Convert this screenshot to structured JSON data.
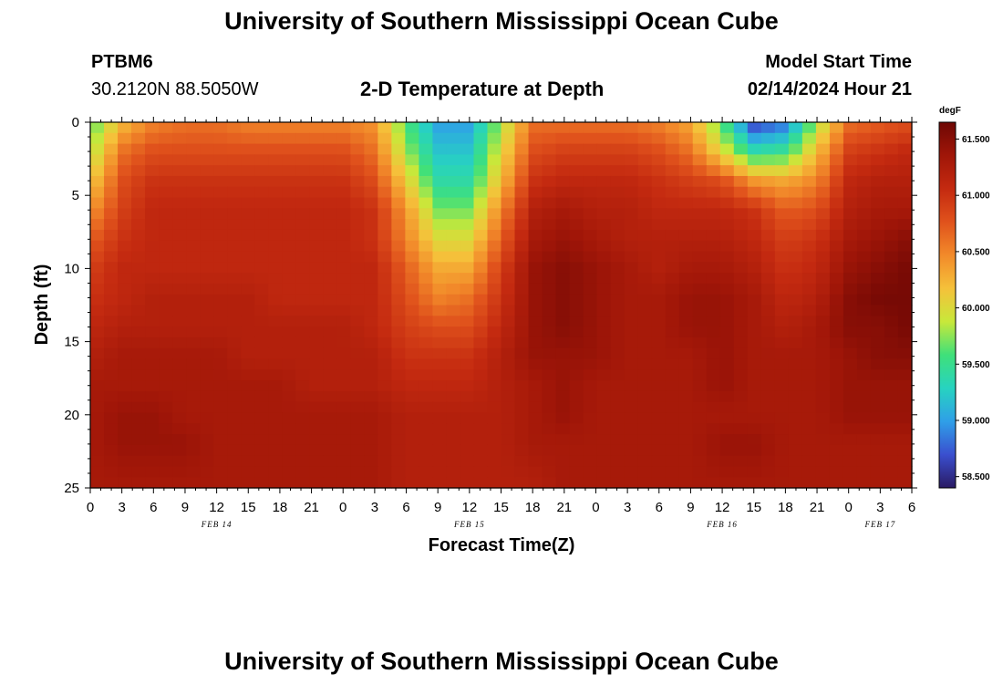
{
  "header": {
    "title": "University of Southern Mississippi Ocean Cube",
    "station": "PTBM6",
    "coords": "30.2120N  88.5050W",
    "plot_title": "2-D Temperature at Depth",
    "model_label": "Model Start Time",
    "model_time": "02/14/2024 Hour 21"
  },
  "footer": {
    "title": "University of Southern Mississippi Ocean Cube"
  },
  "chart_data": {
    "type": "heatmap",
    "title": "2-D Temperature at Depth",
    "xlabel": "Forecast Time(Z)",
    "ylabel": "Depth (ft)",
    "colorbar_label": "degF",
    "x_tick_labels": [
      "0",
      "3",
      "6",
      "9",
      "12",
      "15",
      "18",
      "21",
      "0",
      "3",
      "6",
      "9",
      "12",
      "15",
      "18",
      "21",
      "0",
      "3",
      "6",
      "9",
      "12",
      "15",
      "18",
      "21",
      "0",
      "3",
      "6"
    ],
    "date_labels": [
      {
        "label": "FEB 14",
        "hour_index": 12
      },
      {
        "label": "FEB 15",
        "hour_index": 36
      },
      {
        "label": "FEB 16",
        "hour_index": 60
      },
      {
        "label": "FEB 17",
        "hour_index": 75
      }
    ],
    "x_range_hours": [
      0,
      78
    ],
    "y_ticks": [
      0,
      5,
      10,
      15,
      20,
      25
    ],
    "ylim": [
      0,
      25
    ],
    "y_inverted": true,
    "colorbar_ticks": [
      "58.500",
      "59.000",
      "59.500",
      "60.000",
      "60.500",
      "61.000",
      "61.500"
    ],
    "colorbar_range": [
      58.4,
      61.65
    ],
    "colors": [
      "#2a1a63",
      "#3a4fcf",
      "#2f9fe8",
      "#27d3c0",
      "#3fe07a",
      "#c8e83a",
      "#f5c13a",
      "#f28a2a",
      "#e0521c",
      "#c42a10",
      "#a01608",
      "#6e0704"
    ],
    "temperature_grid": {
      "hours": [
        0,
        3,
        6,
        9,
        12,
        15,
        18,
        21,
        24,
        27,
        30,
        33,
        36,
        39,
        42,
        45,
        48,
        51,
        54,
        57,
        60,
        63,
        66,
        69,
        72,
        75,
        78
      ],
      "depths_ft": [
        0,
        2,
        4,
        6,
        8,
        10,
        12,
        14,
        16,
        18,
        20,
        22,
        25
      ],
      "values_degF": [
        [
          59.6,
          60.2,
          60.5,
          60.6,
          60.6,
          60.5,
          60.5,
          60.5,
          60.5,
          60.4,
          59.6,
          59.0,
          59.0,
          59.8,
          60.6,
          60.6,
          60.6,
          60.6,
          60.5,
          60.3,
          59.6,
          58.6,
          58.8,
          59.8,
          60.6,
          60.7,
          60.8
        ],
        [
          59.8,
          60.6,
          60.8,
          60.8,
          60.8,
          60.8,
          60.8,
          60.8,
          60.8,
          60.6,
          59.8,
          59.2,
          59.2,
          60.0,
          60.8,
          60.9,
          60.9,
          60.9,
          60.8,
          60.6,
          60.0,
          59.4,
          59.5,
          60.2,
          60.9,
          61.0,
          61.1
        ],
        [
          60.1,
          60.8,
          61.0,
          61.0,
          61.0,
          61.0,
          61.0,
          61.0,
          61.0,
          60.8,
          60.1,
          59.4,
          59.4,
          60.2,
          61.0,
          61.1,
          61.1,
          61.1,
          61.0,
          60.9,
          60.8,
          60.4,
          60.3,
          60.5,
          61.1,
          61.2,
          61.2
        ],
        [
          60.4,
          60.9,
          61.1,
          61.1,
          61.1,
          61.1,
          61.1,
          61.1,
          61.1,
          61.0,
          60.4,
          59.7,
          59.7,
          60.5,
          61.2,
          61.3,
          61.2,
          61.2,
          61.1,
          61.1,
          61.1,
          61.0,
          60.7,
          60.8,
          61.2,
          61.3,
          61.3
        ],
        [
          60.7,
          61.0,
          61.1,
          61.1,
          61.1,
          61.1,
          61.1,
          61.1,
          61.1,
          61.0,
          60.5,
          60.0,
          60.0,
          60.7,
          61.3,
          61.4,
          61.3,
          61.2,
          61.2,
          61.2,
          61.2,
          61.1,
          60.9,
          61.0,
          61.3,
          61.4,
          61.5
        ],
        [
          60.9,
          61.1,
          61.1,
          61.1,
          61.1,
          61.1,
          61.1,
          61.1,
          61.1,
          61.1,
          60.7,
          60.3,
          60.3,
          60.9,
          61.4,
          61.5,
          61.4,
          61.3,
          61.2,
          61.3,
          61.3,
          61.2,
          61.0,
          61.1,
          61.4,
          61.5,
          61.6
        ],
        [
          61.0,
          61.1,
          61.2,
          61.2,
          61.2,
          61.2,
          61.1,
          61.1,
          61.1,
          61.1,
          60.8,
          60.5,
          60.6,
          61.0,
          61.4,
          61.5,
          61.4,
          61.3,
          61.3,
          61.4,
          61.4,
          61.3,
          61.1,
          61.2,
          61.5,
          61.6,
          61.6
        ],
        [
          61.1,
          61.2,
          61.2,
          61.2,
          61.2,
          61.2,
          61.2,
          61.2,
          61.2,
          61.1,
          60.9,
          60.8,
          60.8,
          61.1,
          61.4,
          61.5,
          61.4,
          61.3,
          61.3,
          61.4,
          61.4,
          61.3,
          61.2,
          61.3,
          61.5,
          61.5,
          61.6
        ],
        [
          61.2,
          61.3,
          61.3,
          61.3,
          61.3,
          61.2,
          61.2,
          61.2,
          61.2,
          61.2,
          61.0,
          61.0,
          61.0,
          61.2,
          61.4,
          61.4,
          61.4,
          61.3,
          61.3,
          61.3,
          61.4,
          61.3,
          61.3,
          61.3,
          61.4,
          61.5,
          61.5
        ],
        [
          61.3,
          61.3,
          61.3,
          61.3,
          61.3,
          61.3,
          61.3,
          61.2,
          61.2,
          61.2,
          61.1,
          61.1,
          61.1,
          61.2,
          61.3,
          61.4,
          61.3,
          61.3,
          61.3,
          61.3,
          61.4,
          61.3,
          61.3,
          61.3,
          61.4,
          61.4,
          61.4
        ],
        [
          61.3,
          61.4,
          61.4,
          61.3,
          61.3,
          61.3,
          61.3,
          61.3,
          61.3,
          61.3,
          61.2,
          61.2,
          61.2,
          61.2,
          61.3,
          61.4,
          61.3,
          61.3,
          61.3,
          61.3,
          61.3,
          61.3,
          61.3,
          61.3,
          61.4,
          61.4,
          61.4
        ],
        [
          61.3,
          61.4,
          61.4,
          61.4,
          61.3,
          61.3,
          61.3,
          61.3,
          61.3,
          61.3,
          61.2,
          61.2,
          61.2,
          61.2,
          61.3,
          61.3,
          61.3,
          61.3,
          61.3,
          61.3,
          61.4,
          61.4,
          61.3,
          61.3,
          61.3,
          61.3,
          61.3
        ],
        [
          61.3,
          61.3,
          61.3,
          61.3,
          61.3,
          61.3,
          61.3,
          61.3,
          61.3,
          61.3,
          61.2,
          61.2,
          61.2,
          61.2,
          61.2,
          61.3,
          61.3,
          61.3,
          61.3,
          61.3,
          61.3,
          61.3,
          61.3,
          61.3,
          61.3,
          61.3,
          61.3
        ]
      ]
    }
  }
}
